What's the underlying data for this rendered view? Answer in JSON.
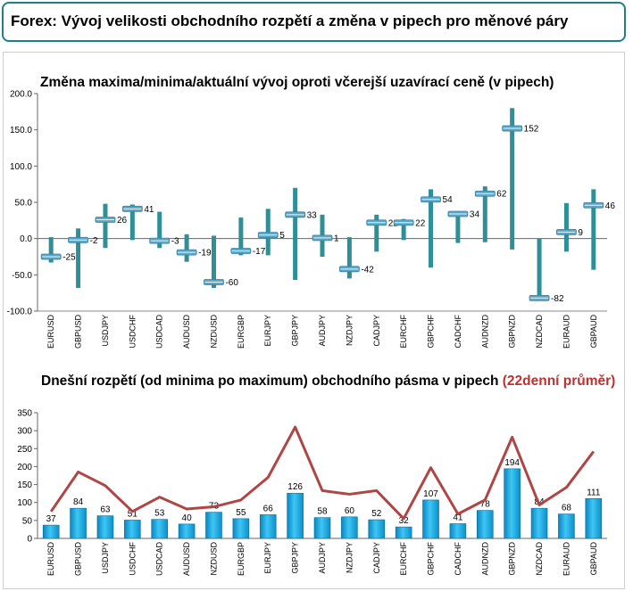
{
  "header": {
    "title": "Forex: Vývoj velikosti obchodního rozpětí a změna v pipech pro měnové páry"
  },
  "colors": {
    "teal": "#2e8f96",
    "marker": "#5aa8c8",
    "bar": "#1ea9e1",
    "avg_line": "#b04545",
    "accent_text": "#c0302f"
  },
  "chart_data": [
    {
      "type": "bar",
      "title": "Změna maxima/minima/aktuální vývoj oproti včerejší uzavírací ceně (v pipech)",
      "ylim": [
        -100,
        200
      ],
      "yticks": [
        "200.0",
        "150.0",
        "100.0",
        "50.0",
        "0.0",
        "-50.0",
        "-100.0"
      ],
      "yticks_values": [
        200,
        150,
        100,
        50,
        0,
        -50,
        -100
      ],
      "categories": [
        "EURUSD",
        "GBPUSD",
        "USDJPY",
        "USDCHF",
        "USDCAD",
        "AUDUSD",
        "NZDUSD",
        "EURGBP",
        "EURJPY",
        "GBPJPY",
        "AUDJPY",
        "NZDJPY",
        "CADJPY",
        "EURCHF",
        "GBPCHF",
        "CADCHF",
        "AUDNZD",
        "GBPNZD",
        "NZDCAD",
        "EURAUD",
        "GBPAUD"
      ],
      "series": [
        {
          "name": "max",
          "values": [
            2,
            14,
            48,
            47,
            37,
            6,
            4,
            29,
            41,
            70,
            33,
            2,
            33,
            27,
            68,
            38,
            72,
            180,
            0,
            49,
            68
          ]
        },
        {
          "name": "min",
          "values": [
            -33,
            -68,
            -13,
            -2,
            -13,
            -32,
            -68,
            -23,
            -23,
            -57,
            -25,
            -55,
            -18,
            -2,
            -40,
            -6,
            -5,
            -15,
            -85,
            -18,
            -43
          ]
        },
        {
          "name": "current",
          "values": [
            -25,
            -2,
            26,
            41,
            -3,
            -19,
            -60,
            -17,
            5,
            33,
            1,
            -42,
            22,
            22,
            54,
            34,
            62,
            152,
            -82,
            9,
            46
          ]
        }
      ],
      "data_labels": [
        "-25",
        "-2",
        "26",
        "41",
        "-3",
        "-19",
        "-60",
        "-17",
        "5",
        "33",
        "1",
        "-42",
        "22",
        "22",
        "54",
        "34",
        "62",
        "152",
        "-82",
        "9",
        "46"
      ]
    },
    {
      "type": "bar",
      "title_main": "Dnešní rozpětí (od minima po maximum) obchodního pásma v pipech",
      "title_accent": "(22denní průměr)",
      "ylim": [
        0,
        350
      ],
      "yticks": [
        "350",
        "300",
        "250",
        "200",
        "150",
        "100",
        "50",
        "0"
      ],
      "yticks_values": [
        350,
        300,
        250,
        200,
        150,
        100,
        50,
        0
      ],
      "categories": [
        "EURUSD",
        "GBPUSD",
        "USDJPY",
        "USDCHF",
        "USDCAD",
        "AUDUSD",
        "NZDUSD",
        "EURGBP",
        "EURJPY",
        "GBPJPY",
        "AUDJPY",
        "NZDJPY",
        "CADJPY",
        "EURCHF",
        "GBPCHF",
        "CADCHF",
        "AUDNZD",
        "GBPNZD",
        "NZDCAD",
        "EURAUD",
        "GBPAUD"
      ],
      "series": [
        {
          "name": "",
          "values": [
            37,
            84,
            63,
            51,
            53,
            40,
            73,
            55,
            66,
            126,
            58,
            60,
            52,
            32,
            107,
            41,
            78,
            194,
            84,
            68,
            111
          ]
        },
        {
          "name": "",
          "values": [
            75,
            185,
            147,
            75,
            115,
            82,
            88,
            107,
            170,
            310,
            133,
            123,
            133,
            55,
            197,
            68,
            107,
            282,
            93,
            142,
            242
          ]
        }
      ],
      "data_labels": [
        "37",
        "84",
        "63",
        "51",
        "53",
        "40",
        "73",
        "55",
        "66",
        "126",
        "58",
        "60",
        "52",
        "32",
        "107",
        "41",
        "78",
        "194",
        "84",
        "68",
        "111"
      ]
    }
  ]
}
